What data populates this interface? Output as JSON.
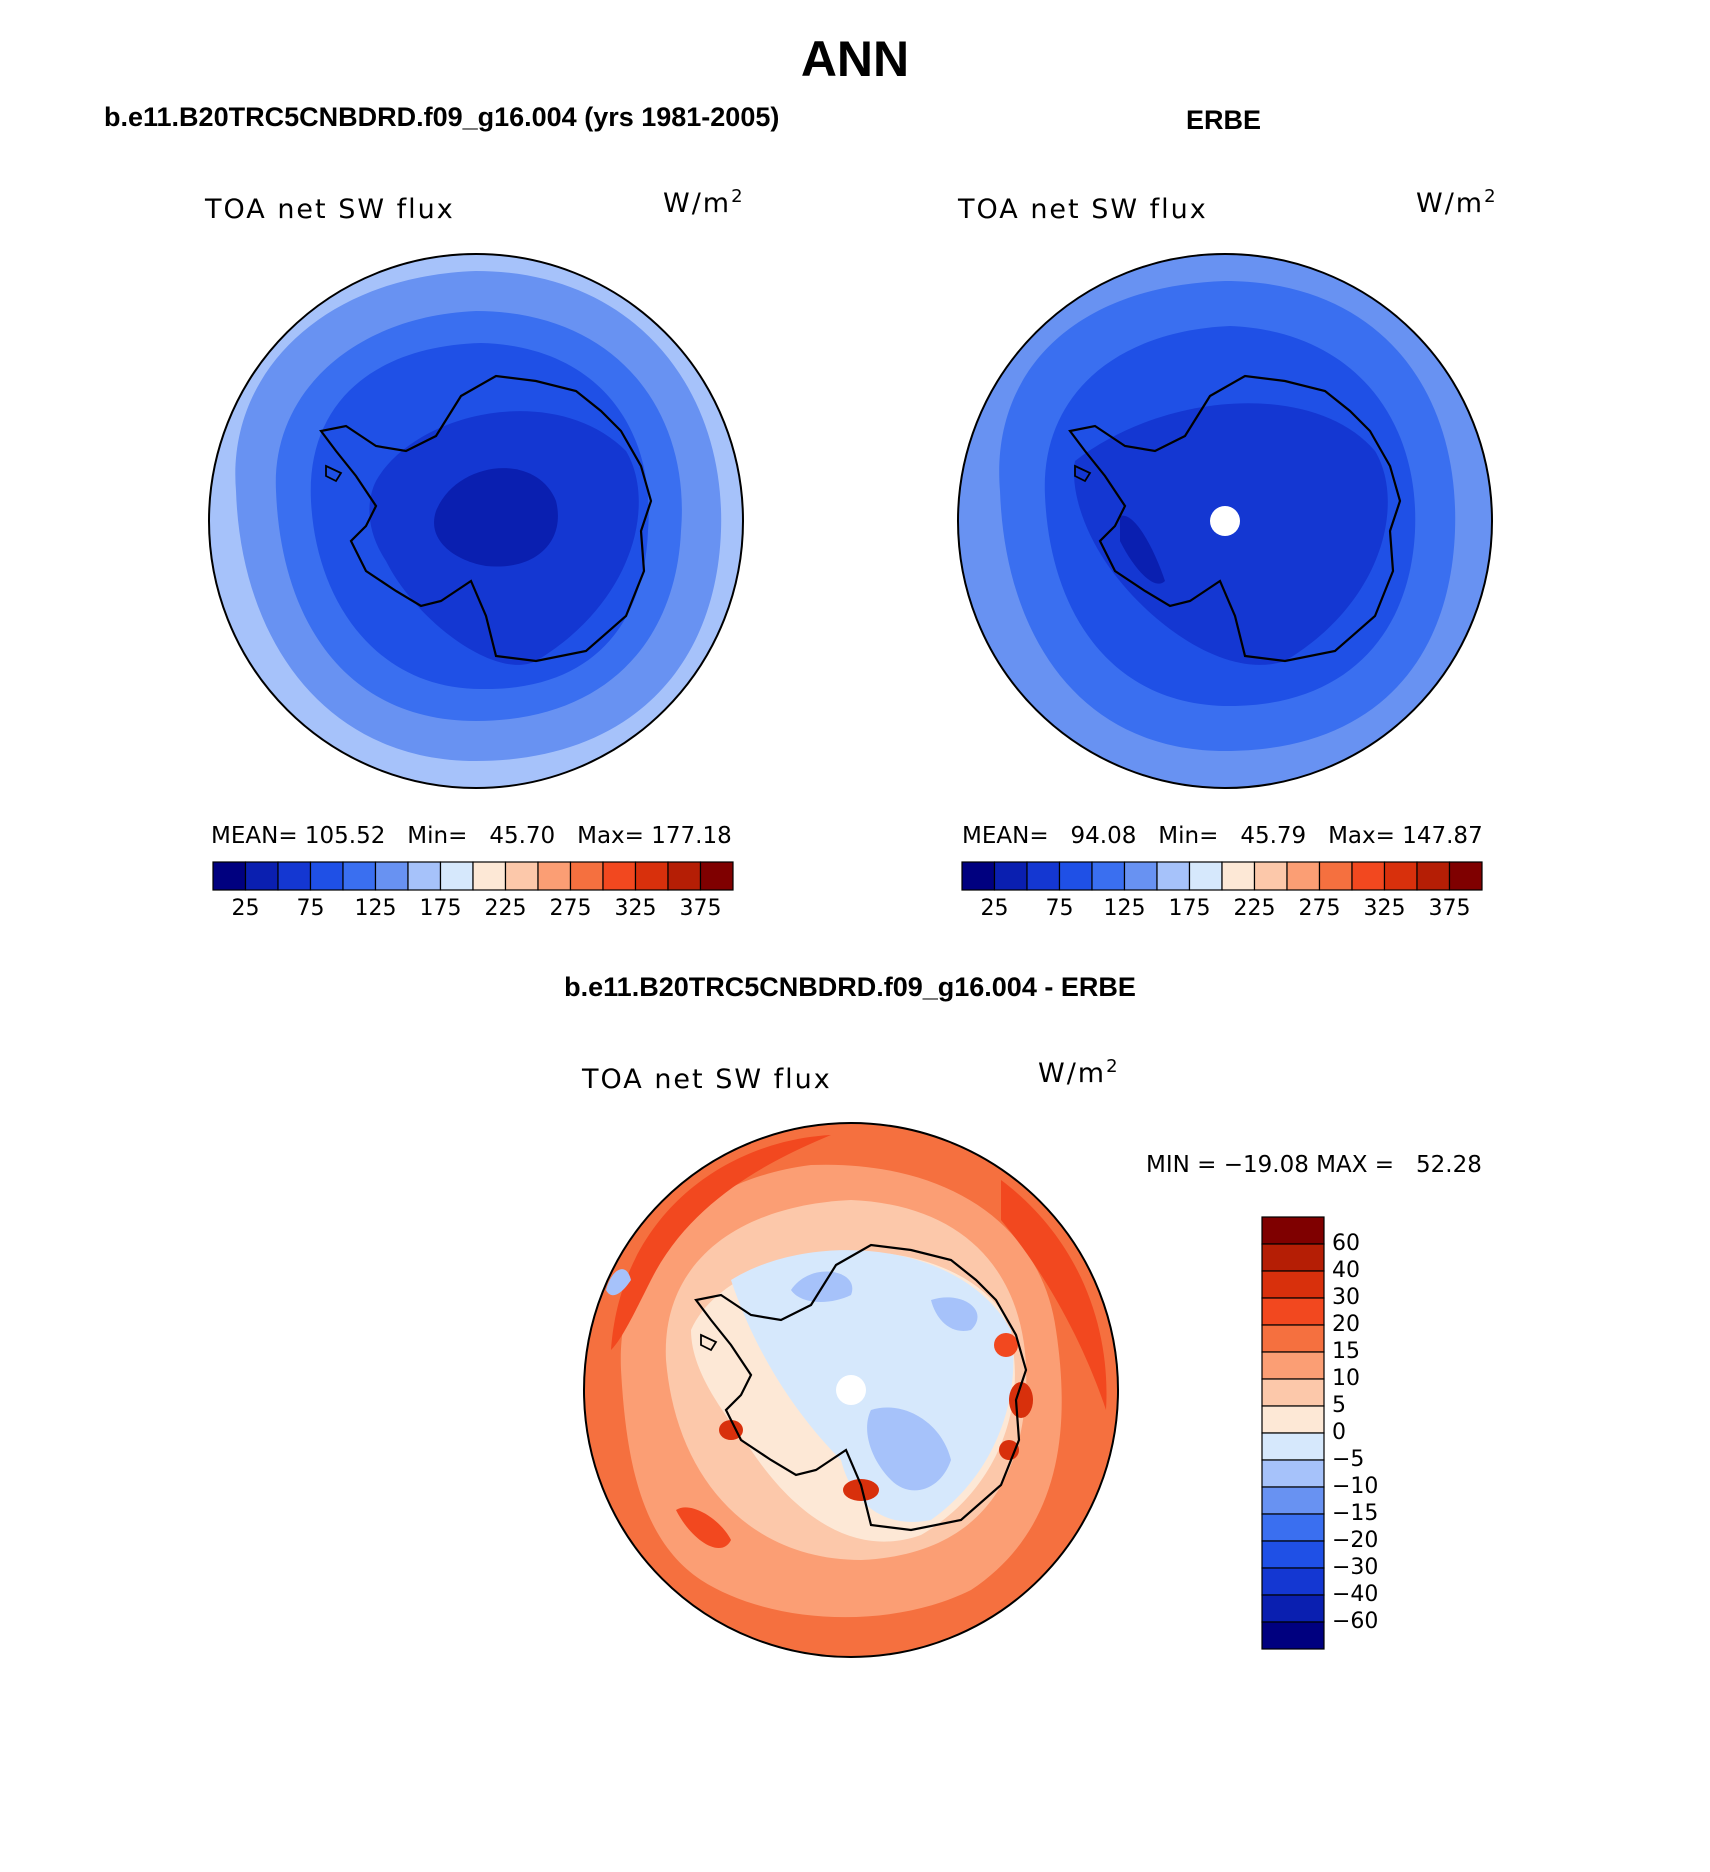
{
  "figure": {
    "title": "ANN"
  },
  "panels": {
    "model": {
      "title": "b.e11.B20TRC5CNBDRD.f09_g16.004 (yrs 1981-2005)",
      "label": "TOA net SW flux",
      "units": "W/m",
      "units_exp": "2",
      "stats": "MEAN= 105.52   Min=   45.70   Max= 177.18"
    },
    "obs": {
      "title": "ERBE",
      "label": "TOA net SW flux",
      "units": "W/m",
      "units_exp": "2",
      "stats": "MEAN=   94.08   Min=   45.79   Max= 147.87"
    },
    "diff": {
      "title": "b.e11.B20TRC5CNBDRD.f09_g16.004 - ERBE",
      "label": "TOA net SW flux",
      "units": "W/m",
      "units_exp": "2",
      "stats": "MIN = −19.08 MAX =   52.28"
    }
  },
  "colorbars": {
    "field_colors": [
      "#00007f",
      "#0a1fb0",
      "#1437d2",
      "#1f50e6",
      "#3a6ff0",
      "#6892f2",
      "#a6c2fa",
      "#d6e8fc",
      "#fde8d6",
      "#fcc8aa",
      "#fb9e74",
      "#f5703f",
      "#f2481f",
      "#d8300c",
      "#b51e05",
      "#7f0000"
    ],
    "field_ticks": [
      "25",
      "75",
      "125",
      "175",
      "225",
      "275",
      "325",
      "375"
    ],
    "diff_colors": [
      "#7f0000",
      "#b51e05",
      "#d8300c",
      "#f2481f",
      "#f5703f",
      "#fb9e74",
      "#fcc8aa",
      "#fde8d6",
      "#d6e8fc",
      "#a6c2fa",
      "#6892f2",
      "#3a6ff0",
      "#1f50e6",
      "#1437d2",
      "#0a1fb0",
      "#00007f"
    ],
    "diff_ticks": [
      "60",
      "40",
      "30",
      "20",
      "15",
      "10",
      "5",
      "0",
      "−5",
      "−10",
      "−15",
      "−20",
      "−30",
      "−40",
      "−60"
    ]
  }
}
